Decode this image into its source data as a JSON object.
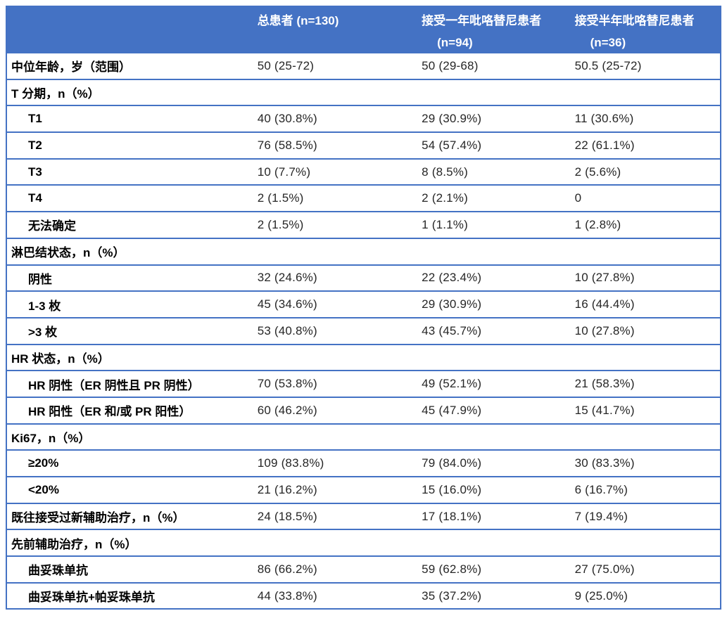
{
  "colors": {
    "accent": "#4472C4",
    "header_text": "#FFFFFF",
    "label_text": "#000000",
    "value_text": "#262626",
    "background": "#FFFFFF"
  },
  "table": {
    "name": "patient-baseline-characteristics",
    "header": {
      "label_col": "",
      "cols": [
        {
          "line1": "总患者 (n=130)",
          "line2": ""
        },
        {
          "line1": "接受一年吡咯替尼患者",
          "line2": "(n=94)"
        },
        {
          "line1": "接受半年吡咯替尼患者",
          "line2": "(n=36)"
        }
      ]
    },
    "rows": [
      {
        "label": "中位年龄，岁（范围）",
        "section": false,
        "indent": false,
        "values": [
          "50 (25-72)",
          "50 (29-68)",
          "50.5 (25-72)"
        ]
      },
      {
        "label": "T 分期，n（%）",
        "section": true,
        "indent": false,
        "values": [
          "",
          "",
          ""
        ]
      },
      {
        "label": "T1",
        "section": false,
        "indent": true,
        "values": [
          "40 (30.8%)",
          "29 (30.9%)",
          "11 (30.6%)"
        ]
      },
      {
        "label": "T2",
        "section": false,
        "indent": true,
        "values": [
          "76 (58.5%)",
          "54 (57.4%)",
          "22 (61.1%)"
        ]
      },
      {
        "label": "T3",
        "section": false,
        "indent": true,
        "values": [
          "10 (7.7%)",
          "8 (8.5%)",
          "2 (5.6%)"
        ]
      },
      {
        "label": "T4",
        "section": false,
        "indent": true,
        "values": [
          "2 (1.5%)",
          "2 (2.1%)",
          "0"
        ]
      },
      {
        "label": "无法确定",
        "section": false,
        "indent": true,
        "values": [
          "2 (1.5%)",
          "1 (1.1%)",
          "1 (2.8%)"
        ]
      },
      {
        "label": "淋巴结状态，n（%）",
        "section": true,
        "indent": false,
        "values": [
          "",
          "",
          ""
        ]
      },
      {
        "label": "阴性",
        "section": false,
        "indent": true,
        "values": [
          "32 (24.6%)",
          "22 (23.4%)",
          "10 (27.8%)"
        ]
      },
      {
        "label": "1-3 枚",
        "section": false,
        "indent": true,
        "values": [
          "45 (34.6%)",
          "29 (30.9%)",
          "16 (44.4%)"
        ]
      },
      {
        "label": ">3 枚",
        "section": false,
        "indent": true,
        "values": [
          "53 (40.8%)",
          "43 (45.7%)",
          "10 (27.8%)"
        ]
      },
      {
        "label": "HR 状态，n（%）",
        "section": true,
        "indent": false,
        "values": [
          "",
          "",
          ""
        ]
      },
      {
        "label": "HR 阴性（ER 阴性且 PR 阴性）",
        "section": false,
        "indent": true,
        "values": [
          "70 (53.8%)",
          "49 (52.1%)",
          "21 (58.3%)"
        ]
      },
      {
        "label": "HR 阳性（ER 和/或 PR 阳性）",
        "section": false,
        "indent": true,
        "values": [
          "60 (46.2%)",
          "45 (47.9%)",
          "15 (41.7%)"
        ]
      },
      {
        "label": "Ki67，n（%）",
        "section": true,
        "indent": false,
        "values": [
          "",
          "",
          ""
        ]
      },
      {
        "label": "≥20%",
        "section": false,
        "indent": true,
        "values": [
          "109 (83.8%)",
          "79 (84.0%)",
          "30 (83.3%)"
        ]
      },
      {
        "label": "<20%",
        "section": false,
        "indent": true,
        "values": [
          "21 (16.2%)",
          "15 (16.0%)",
          "6 (16.7%)"
        ]
      },
      {
        "label": "既往接受过新辅助治疗，n（%）",
        "section": false,
        "indent": false,
        "values": [
          "24 (18.5%)",
          "17 (18.1%)",
          "7 (19.4%)"
        ]
      },
      {
        "label": "先前辅助治疗，n（%）",
        "section": true,
        "indent": false,
        "values": [
          "",
          "",
          ""
        ]
      },
      {
        "label": "曲妥珠单抗",
        "section": false,
        "indent": true,
        "values": [
          "86 (66.2%)",
          "59 (62.8%)",
          "27 (75.0%)"
        ]
      },
      {
        "label": "曲妥珠单抗+帕妥珠单抗",
        "section": false,
        "indent": true,
        "values": [
          "44 (33.8%)",
          "35 (37.2%)",
          "9 (25.0%)"
        ]
      }
    ]
  }
}
